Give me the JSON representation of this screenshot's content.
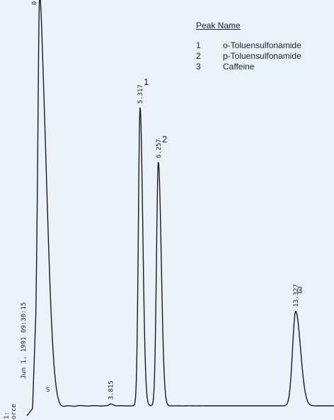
{
  "chart_data": {
    "type": "line",
    "title": "",
    "xlabel": "",
    "ylabel": "",
    "xlim": [
      0.0,
      15.3
    ],
    "ylim": [
      0,
      100
    ],
    "grid": false,
    "line_color": "#1a1a1a",
    "legend": {
      "title": "Peak Name",
      "placement": "top-right",
      "entries": [
        {
          "number": "1",
          "name": "o-Toluensulfonamide"
        },
        {
          "number": "2",
          "name": "p-Toluensulfonamide"
        },
        {
          "number": "3",
          "name": "Caffeine"
        }
      ]
    },
    "peaks": [
      {
        "rt": 0.121,
        "label": "0.121",
        "height": 14,
        "width": 0.05
      },
      {
        "rt": 0.162,
        "label": "0.162",
        "height": 100,
        "width": 0.16
      },
      {
        "rt": 3.815,
        "label": "3.815",
        "height": 0.5,
        "width": 0.1
      },
      {
        "rt": 5.317,
        "label": "5.317",
        "height": 82,
        "width": 0.11,
        "peak_number": "1"
      },
      {
        "rt": 6.257,
        "label": "6.257",
        "height": 67,
        "width": 0.12,
        "peak_number": "2"
      },
      {
        "rt": 13.327,
        "label": "13.327",
        "height": 26,
        "width": 0.2,
        "peak_number": "3"
      }
    ],
    "annotations": [
      "S"
    ],
    "side_labels": [
      "Jun 1, 1991  09:30:15",
      "1:",
      "orce"
    ]
  }
}
